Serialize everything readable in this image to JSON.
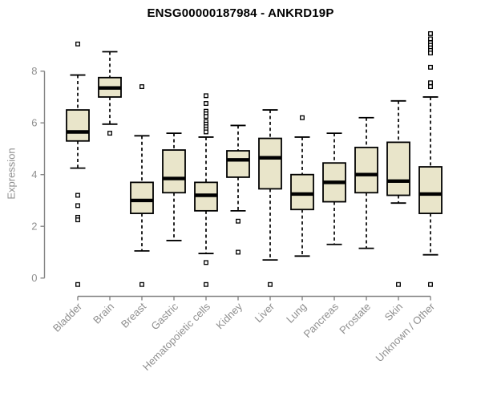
{
  "chart_data": {
    "type": "boxplot",
    "title": "ENSG00000187984 - ANKRD19P",
    "ylabel": "Expression",
    "xlabel": "",
    "yticks": [
      0,
      2,
      4,
      6,
      8
    ],
    "ylim": [
      -0.6,
      9.7
    ],
    "grid": "off",
    "legend": "none",
    "categories": [
      "Bladder",
      "Brain",
      "Breast",
      "Gastric",
      "Hematopoietic cells",
      "Kidney",
      "Liver",
      "Lung",
      "Pancreas",
      "Prostate",
      "Skin",
      "Unknown / Other"
    ],
    "series": [
      {
        "name": "Bladder",
        "whisker_low": 4.25,
        "q1": 5.3,
        "median": 5.65,
        "q3": 6.5,
        "whisker_high": 7.85,
        "outliers": [
          9.05,
          3.2,
          2.8,
          2.35,
          2.25,
          -0.25
        ]
      },
      {
        "name": "Brain",
        "whisker_low": 5.95,
        "q1": 7.0,
        "median": 7.35,
        "q3": 7.75,
        "whisker_high": 8.75,
        "outliers": [
          5.6
        ]
      },
      {
        "name": "Breast",
        "whisker_low": 1.05,
        "q1": 2.5,
        "median": 3.0,
        "q3": 3.7,
        "whisker_high": 5.5,
        "outliers": [
          7.4,
          -0.25
        ]
      },
      {
        "name": "Gastric",
        "whisker_low": 1.45,
        "q1": 3.3,
        "median": 3.85,
        "q3": 4.95,
        "whisker_high": 5.6,
        "outliers": []
      },
      {
        "name": "Hematopoietic cells",
        "whisker_low": 0.95,
        "q1": 2.6,
        "median": 3.2,
        "q3": 3.7,
        "whisker_high": 5.45,
        "outliers": [
          7.05,
          6.75,
          6.45,
          6.35,
          6.25,
          6.05,
          5.95,
          5.85,
          5.75,
          5.65,
          0.6,
          -0.25
        ]
      },
      {
        "name": "Kidney",
        "whisker_low": 2.6,
        "q1": 3.9,
        "median": 4.57,
        "q3": 4.92,
        "whisker_high": 5.9,
        "outliers": [
          2.2,
          1.0
        ]
      },
      {
        "name": "Liver",
        "whisker_low": 0.7,
        "q1": 3.45,
        "median": 4.65,
        "q3": 5.4,
        "whisker_high": 6.5,
        "outliers": [
          -0.25
        ]
      },
      {
        "name": "Lung",
        "whisker_low": 0.85,
        "q1": 2.65,
        "median": 3.25,
        "q3": 4.0,
        "whisker_high": 5.45,
        "outliers": [
          6.2
        ]
      },
      {
        "name": "Pancreas",
        "whisker_low": 1.3,
        "q1": 2.95,
        "median": 3.7,
        "q3": 4.45,
        "whisker_high": 5.6,
        "outliers": []
      },
      {
        "name": "Prostate",
        "whisker_low": 1.15,
        "q1": 3.3,
        "median": 4.0,
        "q3": 5.05,
        "whisker_high": 6.2,
        "outliers": []
      },
      {
        "name": "Skin",
        "whisker_low": 2.9,
        "q1": 3.2,
        "median": 3.75,
        "q3": 5.25,
        "whisker_high": 6.85,
        "outliers": [
          -0.25
        ]
      },
      {
        "name": "Unknown / Other",
        "whisker_low": 0.9,
        "q1": 2.5,
        "median": 3.25,
        "q3": 4.3,
        "whisker_high": 7.0,
        "outliers": [
          9.45,
          9.25,
          9.1,
          9.0,
          8.9,
          8.8,
          8.7,
          8.15,
          7.55,
          7.4,
          -0.25
        ]
      }
    ],
    "colors": {
      "box_fill": "#e9e5ca",
      "box_stroke": "#000000",
      "median": "#000000",
      "whisker": "#000000",
      "outlier_fill": "#ffffff",
      "axis": "#858585",
      "tick_label": "#8f8f8f",
      "title": "#000000",
      "background": "#ffffff"
    }
  }
}
